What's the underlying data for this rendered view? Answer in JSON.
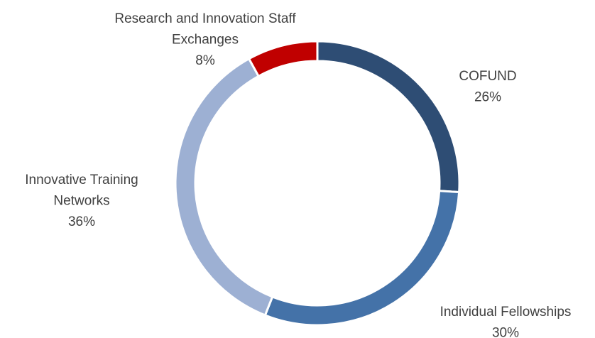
{
  "chart_data": {
    "type": "donut",
    "categories": [
      [
        "COFUND"
      ],
      [
        "Individual Fellowships"
      ],
      [
        "Innovative Training",
        "Networks"
      ],
      [
        "Research and Innovation Staff",
        "Exchanges"
      ]
    ],
    "values": [
      26,
      30,
      36,
      8
    ],
    "value_labels": [
      "26%",
      "30%",
      "36%",
      "8%"
    ],
    "colors": [
      "#2e4d74",
      "#4472a8",
      "#9db0d3",
      "#c00000"
    ]
  }
}
